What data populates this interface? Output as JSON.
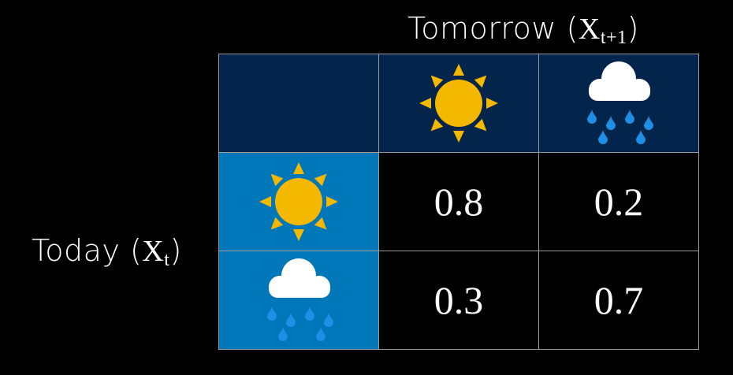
{
  "column_axis": {
    "label": "Tomorrow (",
    "var": "X",
    "sub": "t+1",
    "close": ")"
  },
  "row_axis": {
    "label": "Today (",
    "var": "X",
    "sub": "t",
    "close": ")"
  },
  "states": [
    {
      "name": "sunny",
      "icon": "sun-icon"
    },
    {
      "name": "rainy",
      "icon": "rain-cloud-icon"
    }
  ],
  "matrix": [
    [
      "0.8",
      "0.2"
    ],
    [
      "0.3",
      "0.7"
    ]
  ],
  "colors": {
    "header": "#03244b",
    "row_header": "#0077b8",
    "sun": "#f5b800",
    "drop": "#1e8fe6",
    "cloud": "#ffffff"
  }
}
